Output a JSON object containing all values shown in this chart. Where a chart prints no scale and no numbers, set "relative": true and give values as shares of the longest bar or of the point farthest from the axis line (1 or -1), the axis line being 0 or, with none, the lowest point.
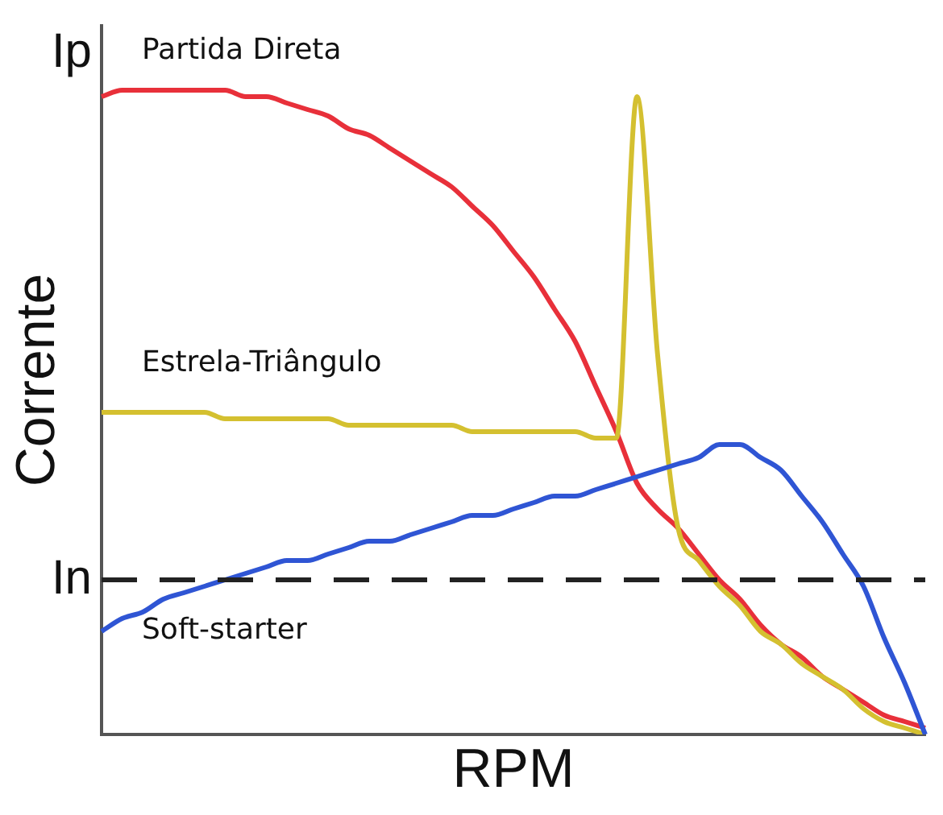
{
  "chart_data": {
    "type": "line",
    "relative": true,
    "xlabel": "RPM",
    "ylabel": "Corrente",
    "annotations": [
      "Ip"
    ],
    "legend": false,
    "grid": false,
    "marker": "none",
    "categories": [
      null,
      null,
      null,
      null,
      null,
      null,
      null,
      null,
      null,
      null,
      null,
      null,
      null,
      null,
      null,
      null,
      null,
      null,
      null,
      null,
      null,
      null,
      null,
      null,
      null,
      null,
      null,
      null,
      null,
      null,
      null,
      null,
      null,
      null,
      null,
      null,
      null,
      null,
      null,
      null,
      null
    ],
    "series": [
      {
        "name": "Partida Direta",
        "color": "#e8303a",
        "values": [
          0.99,
          1,
          1,
          1,
          1,
          1,
          1,
          0.99,
          0.99,
          0.98,
          0.97,
          0.96,
          0.94,
          0.93,
          0.91,
          0.89,
          0.87,
          0.85,
          0.82,
          0.79,
          0.75,
          0.71,
          0.66,
          0.61,
          0.54,
          0.47,
          0.39,
          0.35,
          0.32,
          0.28,
          0.24,
          0.21,
          0.17,
          0.14,
          0.12,
          0.09,
          0.07,
          0.05,
          0.03,
          0.02,
          0.01
        ]
      },
      {
        "name": "Estrela-Triângulo",
        "color": "#d4c030",
        "values": [
          0.5,
          0.5,
          0.5,
          0.5,
          0.5,
          0.5,
          0.49,
          0.49,
          0.49,
          0.49,
          0.49,
          0.49,
          0.48,
          0.48,
          0.48,
          0.48,
          0.48,
          0.48,
          0.47,
          0.47,
          0.47,
          0.47,
          0.47,
          0.47,
          0.46,
          0.46,
          0.99,
          0.59,
          0.32,
          0.27,
          0.23,
          0.2,
          0.16,
          0.14,
          0.11,
          0.09,
          0.07,
          0.04,
          0.02,
          0.01,
          0
        ]
      },
      {
        "name": "Soft-starter",
        "color": "#2f55d4",
        "values": [
          0.16,
          0.18,
          0.19,
          0.21,
          0.22,
          0.23,
          0.24,
          0.25,
          0.26,
          0.27,
          0.27,
          0.28,
          0.29,
          0.3,
          0.3,
          0.31,
          0.32,
          0.33,
          0.34,
          0.34,
          0.35,
          0.36,
          0.37,
          0.37,
          0.38,
          0.39,
          0.4,
          0.41,
          0.42,
          0.43,
          0.45,
          0.45,
          0.43,
          0.41,
          0.37,
          0.33,
          0.28,
          0.23,
          0.15,
          0.08,
          0
        ]
      }
    ],
    "ref_lines": [
      {
        "axis": "y",
        "value": 0.24,
        "label": "In",
        "color": "#222222",
        "line_style": "dashed"
      }
    ]
  }
}
